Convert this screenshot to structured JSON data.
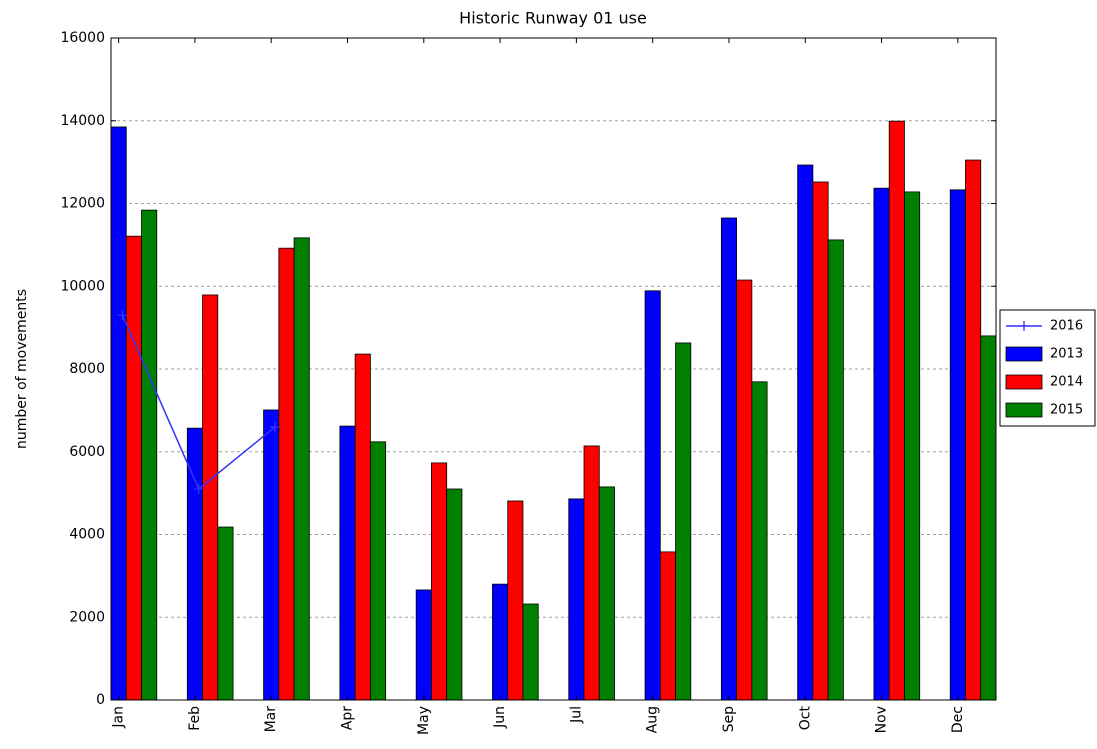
{
  "chart_data": {
    "type": "bar",
    "title": "Historic Runway 01 use",
    "y_label": "number of movements",
    "categories": [
      "Jan",
      "Feb",
      "Mar",
      "Apr",
      "May",
      "Jun",
      "Jul",
      "Aug",
      "Sep",
      "Oct",
      "Nov",
      "Dec"
    ],
    "series": [
      {
        "name": "2013",
        "color": "#0000ff",
        "values": [
          13850,
          6570,
          7010,
          6620,
          2660,
          2800,
          4860,
          9890,
          11650,
          12930,
          12370,
          12330
        ]
      },
      {
        "name": "2014",
        "color": "#ff0000",
        "values": [
          11210,
          9790,
          10920,
          8360,
          5730,
          4810,
          6140,
          3580,
          10150,
          12520,
          13990,
          13050
        ]
      },
      {
        "name": "2015",
        "color": "#008000",
        "values": [
          11840,
          4180,
          11170,
          6240,
          5100,
          2320,
          5150,
          8630,
          7690,
          11120,
          12280,
          8800
        ]
      }
    ],
    "line_series": [
      {
        "name": "2016",
        "color": "#3333ff",
        "values": [
          9300,
          5100,
          6600,
          null,
          null,
          null,
          null,
          null,
          null,
          null,
          null,
          null
        ]
      }
    ],
    "ylim": [
      0,
      16000
    ],
    "yticks": [
      0,
      2000,
      4000,
      6000,
      8000,
      10000,
      12000,
      14000,
      16000
    ],
    "grid": true,
    "legend": "outside right"
  }
}
